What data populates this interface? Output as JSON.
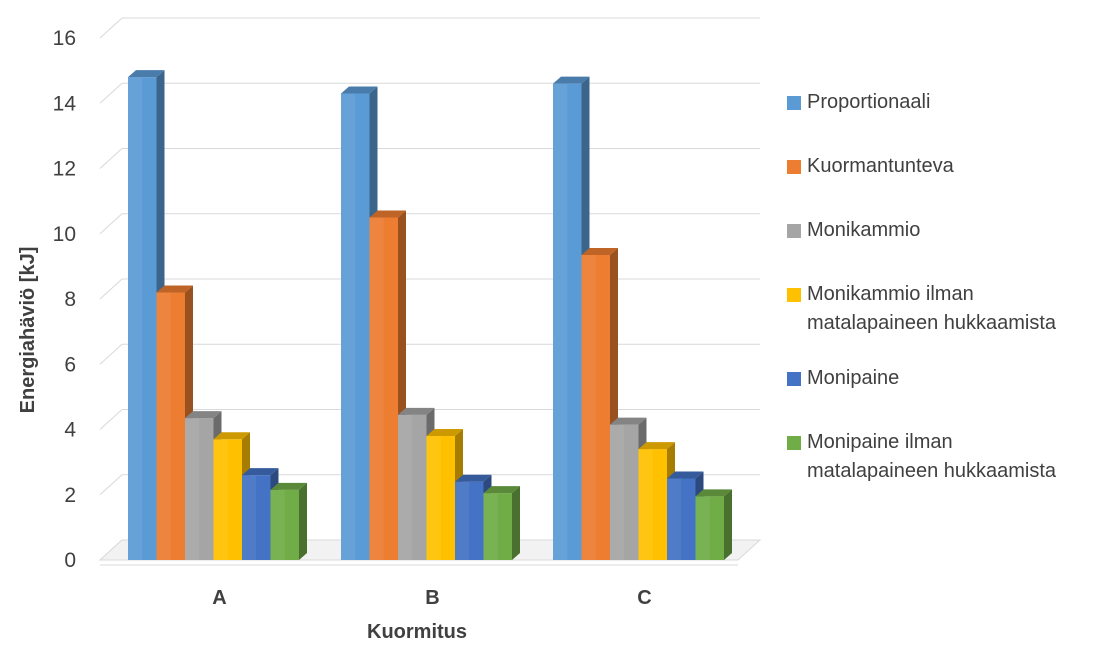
{
  "chart_data": {
    "type": "bar",
    "style": "3d-clustered-column",
    "xlabel": "Kuormitus",
    "ylabel": "Energiahäviö [kJ]",
    "ylim": [
      0,
      16
    ],
    "yticks": [
      "0",
      "2",
      "4",
      "6",
      "8",
      "10",
      "12",
      "14",
      "16"
    ],
    "categories": [
      "A",
      "B",
      "C"
    ],
    "grid": true,
    "legend_position": "right",
    "series": [
      {
        "name": "Proportionaali",
        "color": "#5b9bd5",
        "values": [
          14.8,
          14.3,
          14.6
        ]
      },
      {
        "name": "Kuormantunteva",
        "color": "#ed7d31",
        "values": [
          8.2,
          10.5,
          9.35
        ]
      },
      {
        "name": "Monikammio",
        "color": "#a5a5a5",
        "values": [
          4.35,
          4.45,
          4.15
        ]
      },
      {
        "name": "Monikammio ilman\nmatalapaineen hukkaamista",
        "color": "#ffc000",
        "values": [
          3.7,
          3.8,
          3.4
        ]
      },
      {
        "name": "Monipaine",
        "color": "#4472c4",
        "values": [
          2.6,
          2.4,
          2.5
        ]
      },
      {
        "name": "Monipaine ilman\nmatalapaineen hukkaamista",
        "color": "#70ad47",
        "values": [
          2.15,
          2.05,
          1.95
        ]
      }
    ]
  }
}
